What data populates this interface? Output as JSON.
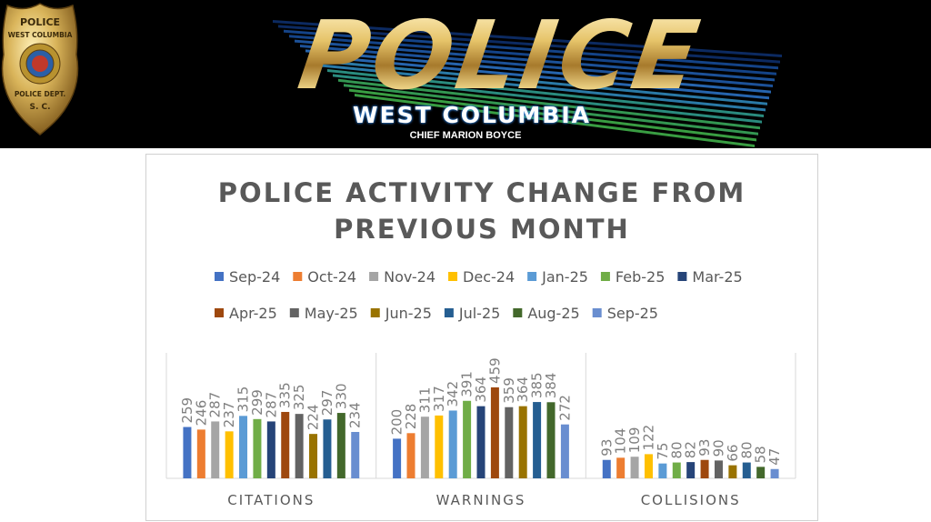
{
  "header": {
    "badge_text_top": "POLICE",
    "badge_text_city": "WEST COLUMBIA",
    "badge_text_dept": "POLICE DEPT.",
    "badge_text_state": "S. C.",
    "logo_word": "POLICE",
    "city_name": "WEST COLUMBIA",
    "chief": "CHIEF MARION BOYCE",
    "colors": {
      "background": "#000000",
      "gold": "#d9b45a",
      "stripe_blue": "#1f5aa8",
      "stripe_green": "#3fae49"
    }
  },
  "chart_data": {
    "type": "bar",
    "title_lines": [
      "POLICE ACTIVITY CHANGE FROM",
      "PREVIOUS MONTH"
    ],
    "categories": [
      "CITATIONS",
      "WARNINGS",
      "COLLISIONS"
    ],
    "legend_position": "top",
    "grid": false,
    "series": [
      {
        "name": "Sep-24",
        "color": "#4472c4",
        "values": [
          259,
          200,
          93
        ]
      },
      {
        "name": "Oct-24",
        "color": "#ed7d31",
        "values": [
          246,
          228,
          104
        ]
      },
      {
        "name": "Nov-24",
        "color": "#a5a5a5",
        "values": [
          287,
          311,
          109
        ]
      },
      {
        "name": "Dec-24",
        "color": "#ffc000",
        "values": [
          237,
          317,
          122
        ]
      },
      {
        "name": "Jan-25",
        "color": "#5b9bd5",
        "values": [
          315,
          342,
          75
        ]
      },
      {
        "name": "Feb-25",
        "color": "#70ad47",
        "values": [
          299,
          391,
          80
        ]
      },
      {
        "name": "Mar-25",
        "color": "#264478",
        "values": [
          287,
          364,
          82
        ]
      },
      {
        "name": "Apr-25",
        "color": "#9e480e",
        "values": [
          335,
          459,
          93
        ]
      },
      {
        "name": "May-25",
        "color": "#636363",
        "values": [
          325,
          359,
          90
        ]
      },
      {
        "name": "Jun-25",
        "color": "#997300",
        "values": [
          224,
          364,
          66
        ]
      },
      {
        "name": "Jul-25",
        "color": "#255e91",
        "values": [
          297,
          385,
          80
        ]
      },
      {
        "name": "Aug-25",
        "color": "#43682b",
        "values": [
          330,
          384,
          58
        ]
      },
      {
        "name": "Sep-25",
        "color": "#698ed0",
        "values": [
          234,
          272,
          47
        ]
      }
    ]
  }
}
